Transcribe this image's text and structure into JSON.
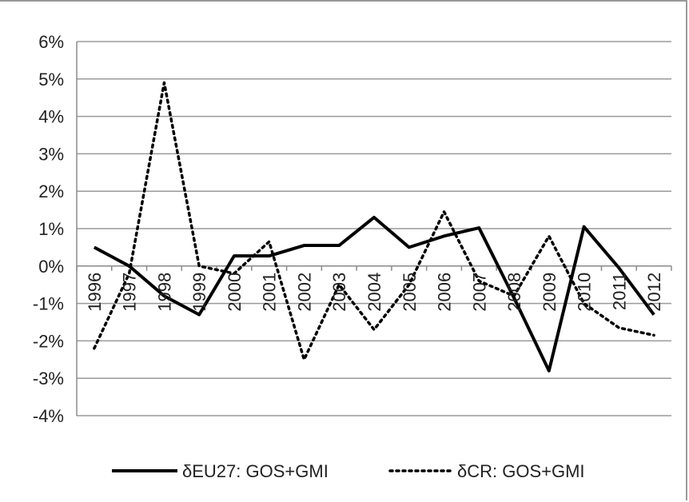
{
  "chart_data": {
    "type": "line",
    "title": "",
    "xlabel": "",
    "ylabel": "",
    "x": [
      "1996",
      "1997",
      "1998",
      "1999",
      "2000",
      "2001",
      "2002",
      "2003",
      "2004",
      "2005",
      "2006",
      "2007",
      "2008",
      "2009",
      "2010",
      "2011",
      "2012"
    ],
    "ylim": [
      -4,
      6
    ],
    "y_ticks": [
      6,
      5,
      4,
      3,
      2,
      1,
      0,
      -1,
      -2,
      -3,
      -4
    ],
    "y_tick_labels": [
      "6%",
      "5%",
      "4%",
      "3%",
      "2%",
      "1%",
      "0%",
      "-1%",
      "-2%",
      "-3%",
      "-4%"
    ],
    "grid": true,
    "legend_position": "bottom",
    "series": [
      {
        "name": "δEU27: GOS+GMI",
        "style": "solid",
        "color": "#000000",
        "values": [
          0.5,
          0.0,
          -0.8,
          -1.3,
          0.27,
          0.27,
          0.55,
          0.55,
          1.3,
          0.5,
          0.8,
          1.02,
          -0.85,
          -2.8,
          1.05,
          -0.05,
          -1.3
        ]
      },
      {
        "name": "δCR: GOS+GMI",
        "style": "dotted",
        "color": "#000000",
        "values": [
          -2.2,
          -0.2,
          4.9,
          0.0,
          -0.2,
          0.65,
          -2.5,
          -0.5,
          -1.7,
          -0.5,
          1.45,
          -0.4,
          -0.8,
          0.8,
          -1.0,
          -1.65,
          -1.85
        ]
      }
    ]
  }
}
